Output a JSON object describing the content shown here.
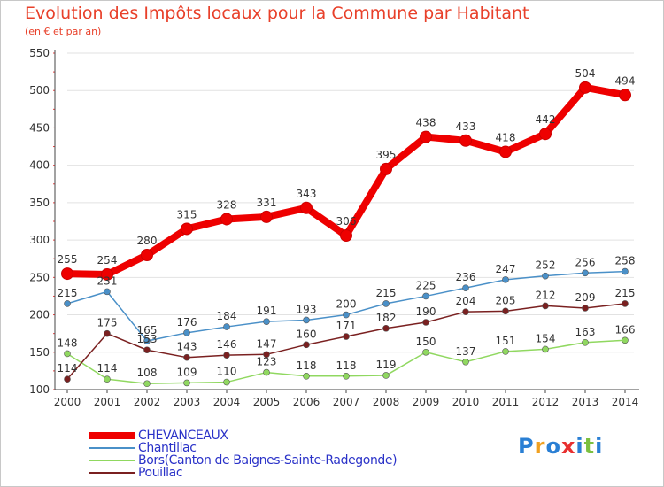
{
  "title": "Evolution des Impôts locaux pour la Commune par Habitant",
  "subtitle": "(en € et par an)",
  "logo": {
    "letters": [
      "P",
      "r",
      "o",
      "x",
      "i",
      "t",
      "i"
    ],
    "colors": [
      "#2a7fd4",
      "#f0a020",
      "#2a7fd4",
      "#e83030",
      "#2a7fd4",
      "#7cc040",
      "#2a7fd4"
    ]
  },
  "chart_data": {
    "type": "line",
    "x": [
      2000,
      2001,
      2002,
      2003,
      2004,
      2005,
      2006,
      2007,
      2008,
      2009,
      2010,
      2011,
      2012,
      2013,
      2014
    ],
    "ylim": [
      100,
      550
    ],
    "yticks": [
      100,
      150,
      200,
      250,
      300,
      350,
      400,
      450,
      500,
      550
    ],
    "grid": "horizontal",
    "legend_position": "bottom-left",
    "series": [
      {
        "name": "CHEVANCEAUX",
        "color": "#ee0000",
        "highlight": true,
        "values": [
          255,
          254,
          280,
          315,
          328,
          331,
          343,
          306,
          395,
          438,
          433,
          418,
          442,
          504,
          494
        ]
      },
      {
        "name": "Chantillac",
        "color": "#4a90c8",
        "highlight": false,
        "values": [
          215,
          231,
          165,
          176,
          184,
          191,
          193,
          200,
          215,
          225,
          236,
          247,
          252,
          256,
          258
        ]
      },
      {
        "name": "Bors(Canton de Baignes-Sainte-Radegonde)",
        "color": "#90d860",
        "highlight": false,
        "values": [
          148,
          114,
          108,
          109,
          110,
          123,
          118,
          118,
          119,
          150,
          137,
          151,
          154,
          163,
          166
        ]
      },
      {
        "name": "Pouillac",
        "color": "#7a2020",
        "highlight": false,
        "values": [
          114,
          175,
          153,
          143,
          146,
          147,
          160,
          171,
          182,
          190,
          204,
          205,
          212,
          209,
          215
        ]
      }
    ]
  }
}
